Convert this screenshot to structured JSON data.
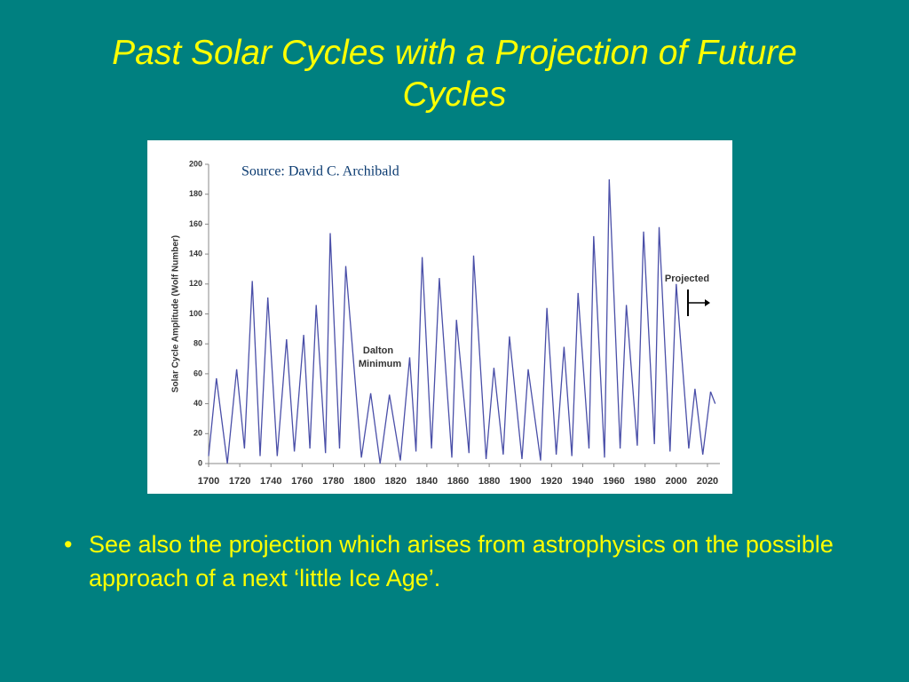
{
  "title": "Past Solar Cycles with a Projection of Future Cycles",
  "bullets": [
    "See also the projection which arises from astrophysics on the possible approach of a next ‘little Ice Age’."
  ],
  "chart_data": {
    "type": "line",
    "source": "Source: David C. Archibald",
    "y_label": "Solar Cycle Amplitude (Wolf Number)",
    "annotations": [
      "Dalton",
      "Minimum",
      "Projected"
    ],
    "x": [
      1700,
      1705,
      1712,
      1718,
      1723,
      1728,
      1733,
      1738,
      1744,
      1750,
      1755,
      1761,
      1765,
      1769,
      1775,
      1778,
      1784,
      1788,
      1798,
      1804,
      1810,
      1816,
      1823,
      1829,
      1833,
      1837,
      1843,
      1848,
      1856,
      1859,
      1867,
      1870,
      1878,
      1883,
      1889,
      1893,
      1901,
      1905,
      1913,
      1917,
      1923,
      1928,
      1933,
      1937,
      1944,
      1947,
      1954,
      1957,
      1964,
      1968,
      1975,
      1979,
      1986,
      1989,
      1996,
      2000,
      2008,
      2012,
      2017,
      2022,
      2025
    ],
    "series": [
      {
        "color": "#4a4fa8",
        "values": [
          5,
          57,
          0,
          63,
          10,
          122,
          5,
          111,
          5,
          83,
          8,
          86,
          10,
          106,
          7,
          154,
          10,
          132,
          4,
          47,
          0,
          46,
          2,
          71,
          8,
          138,
          10,
          124,
          4,
          96,
          7,
          139,
          3,
          64,
          6,
          85,
          3,
          63,
          2,
          104,
          6,
          78,
          5,
          114,
          10,
          152,
          4,
          190,
          10,
          106,
          12,
          155,
          13,
          158,
          8,
          120,
          10,
          50,
          6,
          48,
          40
        ]
      }
    ],
    "xlim": [
      1700,
      2028
    ],
    "xticks": [
      1700,
      1720,
      1740,
      1760,
      1780,
      1800,
      1820,
      1840,
      1860,
      1880,
      1900,
      1920,
      1940,
      1960,
      1980,
      2000,
      2020
    ],
    "ylim": [
      0,
      200
    ],
    "yticks": [
      0,
      20,
      40,
      60,
      80,
      100,
      120,
      140,
      160,
      180,
      200
    ]
  }
}
